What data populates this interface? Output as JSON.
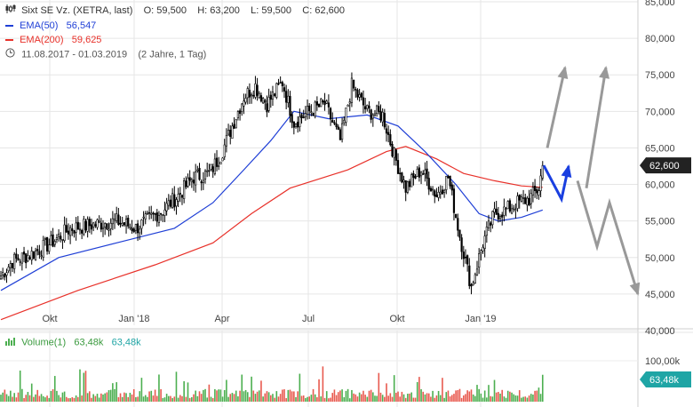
{
  "header": {
    "symbol_line": "Sixt SE Vz. (XETRA, last)",
    "open": "O: 59,500",
    "high": "H: 63,200",
    "low": "L: 59,500",
    "close": "C: 62,600",
    "ema50_label": "EMA(50)",
    "ema50_value": "56,547",
    "ema200_label": "EMA(200)",
    "ema200_value": "59,625",
    "range": "11.08.2017 - 01.03.2019",
    "period": "(2 Jahre, 1 Tag)"
  },
  "volume_legend": {
    "label": "Volume(1)",
    "value1": "63,48k",
    "value2": "63,48k"
  },
  "colors": {
    "ema50": "#1f3fd6",
    "ema200": "#e8312a",
    "candle": "#000000",
    "volume_up": "#4caf50",
    "volume_down": "#e85a4f",
    "tag_bg": "#222222",
    "vol_tag_bg": "#1fa5a5",
    "arrow_blue": "#1a3fe0",
    "arrow_grey": "#999999"
  },
  "icons": {
    "candles": "candlestick-icon",
    "clock": "clock-icon",
    "volume": "volume-bars-icon"
  },
  "chart_data": {
    "type": "candlestick",
    "title": "Sixt SE Vz. (XETRA, last)",
    "y_ticks": [
      "85,000",
      "80,000",
      "75,000",
      "70,000",
      "65,000",
      "60,000",
      "55,000",
      "50,000",
      "45,000",
      "40,000"
    ],
    "ylim": [
      40,
      85
    ],
    "x_ticks": [
      "Okt",
      "Jan '18",
      "Apr",
      "Jul",
      "Okt",
      "Jan '19"
    ],
    "last_price_tag": "62,600",
    "last_price": 62.6,
    "volume_ticks": [
      "100,00k"
    ],
    "volume_last_tag": "63,48k",
    "volume_max": 130,
    "anchors": [
      {
        "t": 0,
        "p": 47.5
      },
      {
        "t": 6,
        "p": 49.5
      },
      {
        "t": 16,
        "p": 50.5
      },
      {
        "t": 26,
        "p": 52.0
      },
      {
        "t": 36,
        "p": 54.0
      },
      {
        "t": 48,
        "p": 54.5
      },
      {
        "t": 60,
        "p": 55.0
      },
      {
        "t": 70,
        "p": 54.0
      },
      {
        "t": 78,
        "p": 55.5
      },
      {
        "t": 84,
        "p": 56.5
      },
      {
        "t": 92,
        "p": 58.5
      },
      {
        "t": 100,
        "p": 61.0
      },
      {
        "t": 108,
        "p": 61.5
      },
      {
        "t": 114,
        "p": 64.0
      },
      {
        "t": 120,
        "p": 68.0
      },
      {
        "t": 126,
        "p": 72.0
      },
      {
        "t": 132,
        "p": 73.5
      },
      {
        "t": 138,
        "p": 71.0
      },
      {
        "t": 146,
        "p": 74.0
      },
      {
        "t": 152,
        "p": 68.5
      },
      {
        "t": 160,
        "p": 70.0
      },
      {
        "t": 168,
        "p": 71.0
      },
      {
        "t": 176,
        "p": 66.0
      },
      {
        "t": 182,
        "p": 73.5
      },
      {
        "t": 190,
        "p": 70.0
      },
      {
        "t": 198,
        "p": 69.5
      },
      {
        "t": 204,
        "p": 64.0
      },
      {
        "t": 210,
        "p": 59.5
      },
      {
        "t": 218,
        "p": 62.0
      },
      {
        "t": 226,
        "p": 58.5
      },
      {
        "t": 232,
        "p": 61.0
      },
      {
        "t": 238,
        "p": 53.0
      },
      {
        "t": 244,
        "p": 46.0
      },
      {
        "t": 250,
        "p": 52.0
      },
      {
        "t": 256,
        "p": 56.0
      },
      {
        "t": 262,
        "p": 56.5
      },
      {
        "t": 268,
        "p": 57.5
      },
      {
        "t": 274,
        "p": 58.0
      },
      {
        "t": 279,
        "p": 59.5
      },
      {
        "t": 281,
        "p": 62.6
      }
    ],
    "series": [
      {
        "name": "EMA(50)",
        "values_at": [
          [
            0,
            45.5
          ],
          [
            30,
            50.0
          ],
          [
            60,
            52.0
          ],
          [
            90,
            54.0
          ],
          [
            110,
            57.5
          ],
          [
            126,
            62.0
          ],
          [
            140,
            66.0
          ],
          [
            152,
            70.0
          ],
          [
            170,
            69.0
          ],
          [
            190,
            69.5
          ],
          [
            206,
            68.0
          ],
          [
            220,
            64.5
          ],
          [
            236,
            60.0
          ],
          [
            248,
            56.0
          ],
          [
            258,
            55.0
          ],
          [
            270,
            55.5
          ],
          [
            281,
            56.5
          ]
        ]
      },
      {
        "name": "EMA(200)",
        "values_at": [
          [
            0,
            41.5
          ],
          [
            40,
            45.5
          ],
          [
            80,
            49.0
          ],
          [
            110,
            52.0
          ],
          [
            130,
            56.0
          ],
          [
            150,
            59.5
          ],
          [
            180,
            62.0
          ],
          [
            200,
            64.5
          ],
          [
            210,
            65.2
          ],
          [
            226,
            63.5
          ],
          [
            240,
            61.5
          ],
          [
            256,
            60.5
          ],
          [
            270,
            59.8
          ],
          [
            281,
            59.6
          ]
        ]
      }
    ],
    "forecast_arrows": [
      {
        "color": "blue",
        "points": [
          [
            612,
            62.6
          ],
          [
            632,
            58.0
          ],
          [
            640,
            62.5
          ]
        ]
      },
      {
        "color": "grey",
        "points": [
          [
            616,
            65.0
          ],
          [
            636,
            76.0
          ]
        ]
      },
      {
        "color": "grey",
        "points": [
          [
            660,
            59.5
          ],
          [
            682,
            76.0
          ]
        ]
      },
      {
        "color": "grey",
        "points": [
          [
            650,
            60.5
          ],
          [
            672,
            51.5
          ],
          [
            686,
            57.5
          ],
          [
            718,
            45.0
          ]
        ]
      }
    ]
  }
}
